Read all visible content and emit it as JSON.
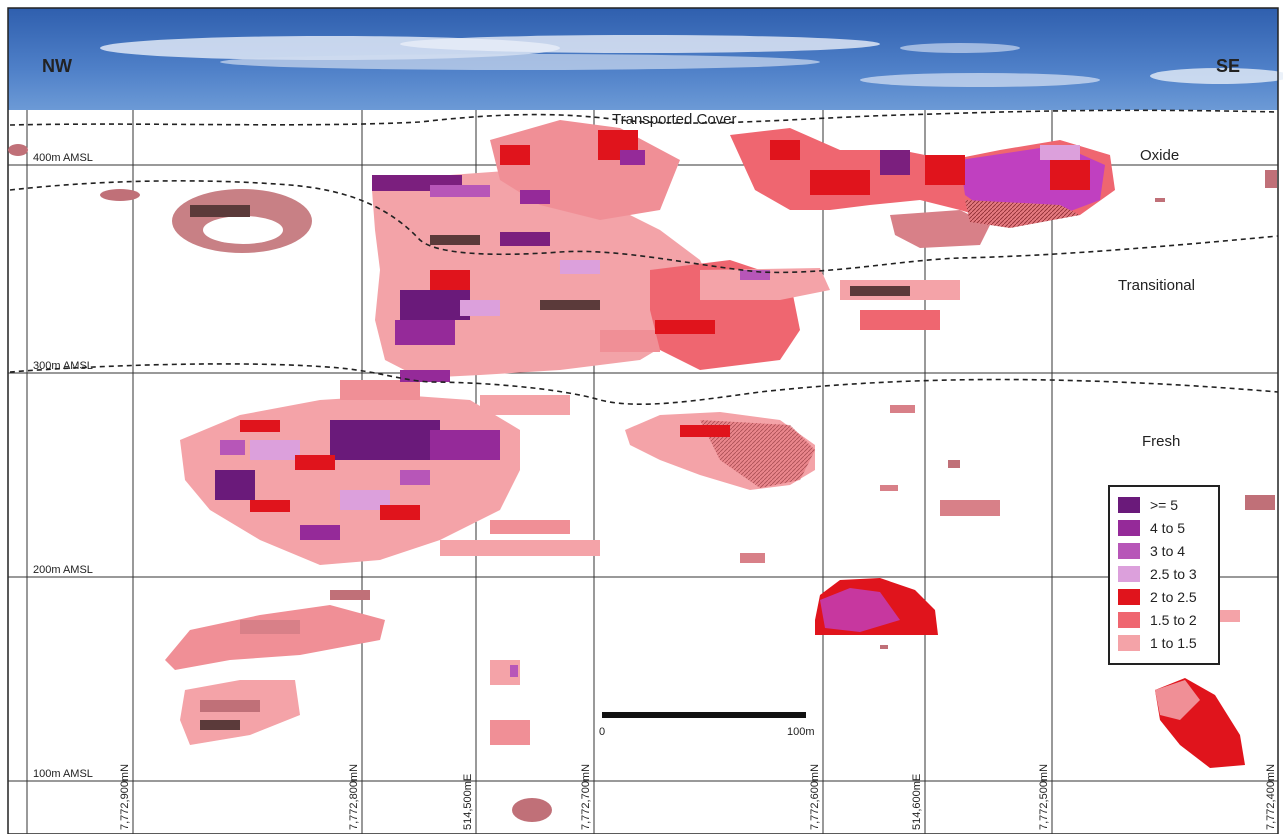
{
  "header": {
    "left_direction": "NW",
    "right_direction": "SE"
  },
  "zones": {
    "transported_cover": "Transported Cover",
    "oxide": "Oxide",
    "transitional": "Transitional",
    "fresh": "Fresh"
  },
  "elevations": [
    "400m AMSL",
    "300m AMSL",
    "200m AMSL",
    "100m AMSL"
  ],
  "grid_labels": [
    "7,772,900mN",
    "7,772,800mN",
    "514,500mE",
    "7,772,700mN",
    "7,772,600mN",
    "514,600mE",
    "7,772,500mN",
    "7,772,400mN"
  ],
  "scale_bar": {
    "start": "0",
    "end": "100m"
  },
  "legend": {
    "items": [
      {
        "label": ">= 5",
        "color": "#6a1a7a"
      },
      {
        "label": "4 to 5",
        "color": "#952a99"
      },
      {
        "label": "3 to 4",
        "color": "#b756b8"
      },
      {
        "label": "2.5 to 3",
        "color": "#dca0dc"
      },
      {
        "label": "2 to 2.5",
        "color": "#e0141c"
      },
      {
        "label": "1.5 to 2",
        "color": "#ef6670"
      },
      {
        "label": "1 to 1.5",
        "color": "#f4a3a8"
      }
    ]
  }
}
